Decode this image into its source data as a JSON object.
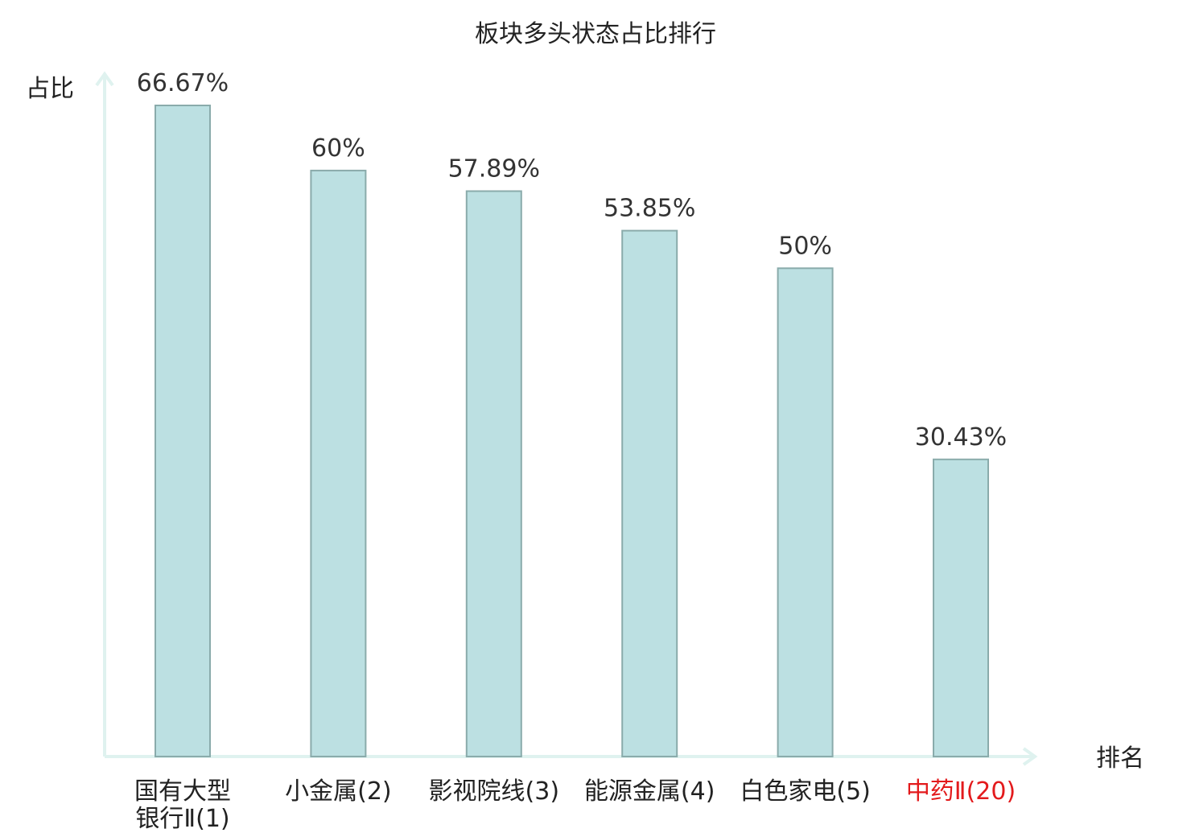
{
  "colors": {
    "bar_fill": "#bce0e2",
    "bar_stroke": "#8aabab",
    "axis": "#dff2ef",
    "highlight": "#e31a1c"
  },
  "chart_data": {
    "type": "bar",
    "title": "板块多头状态占比排行",
    "ylabel": "占比",
    "xlabel": "排名",
    "ylim": [
      0,
      70
    ],
    "grid": false,
    "legend": "none",
    "categories": [
      [
        "国有大型",
        "银行Ⅱ(1)"
      ],
      [
        "小金属(2)"
      ],
      [
        "影视院线(3)"
      ],
      [
        "能源金属(4)"
      ],
      [
        "白色家电(5)"
      ],
      [
        "中药Ⅱ(20)"
      ]
    ],
    "highlight_index": 5,
    "values": [
      66.67,
      60,
      57.89,
      53.85,
      50,
      30.43
    ],
    "value_labels": [
      "66.67%",
      "60%",
      "57.89%",
      "53.85%",
      "50%",
      "30.43%"
    ]
  }
}
